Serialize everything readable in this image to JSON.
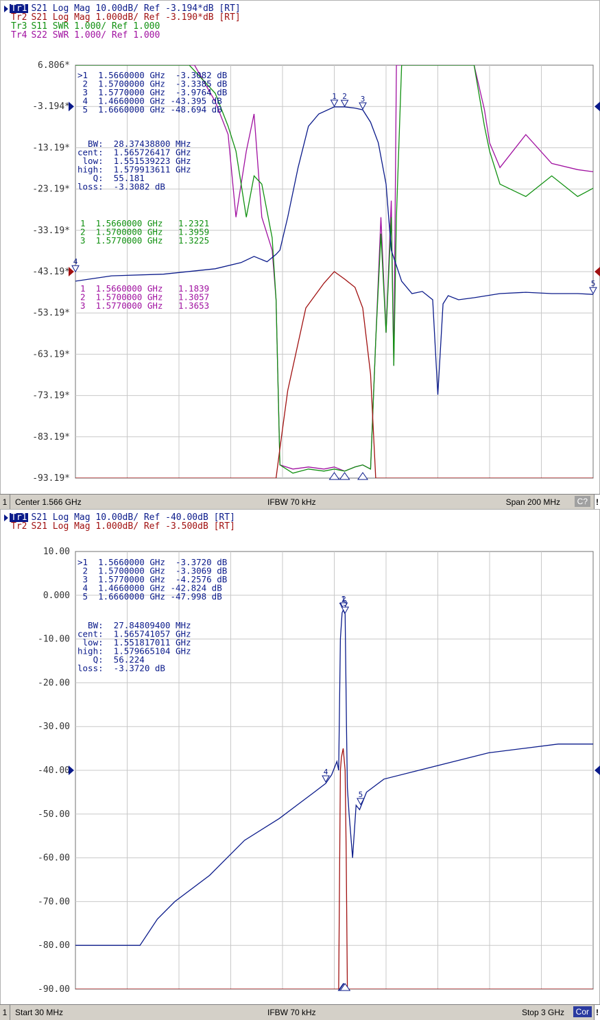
{
  "top": {
    "traces": [
      {
        "tag": "Tr1",
        "text": "S21 Log Mag 10.00dB/ Ref -3.194*dB [RT]",
        "color": "#0a1a8a",
        "active": true
      },
      {
        "tag": "Tr2",
        "text": "S21 Log Mag 1.000dB/ Ref -3.190*dB [RT]",
        "color": "#a01010",
        "active": false
      },
      {
        "tag": "Tr3",
        "text": "S11 SWR 1.000/ Ref 1.000",
        "color": "#109010",
        "active": false
      },
      {
        "tag": "Tr4",
        "text": "S22 SWR 1.000/ Ref 1.000",
        "color": "#a010a0",
        "active": false
      }
    ],
    "y_ticks": [
      "6.806*",
      "-3.194*",
      "-13.19*",
      "-23.19*",
      "-33.19*",
      "-43.19*",
      "-53.19*",
      "-63.19*",
      "-73.19*",
      "-83.19*",
      "-93.19*"
    ],
    "marker_table_tr1": [
      ">1  1.5660000 GHz  -3.3082 dB",
      " 2  1.5700000 GHz  -3.3385 dB",
      " 3  1.5770000 GHz  -3.9764 dB",
      " 4  1.4660000 GHz -43.395 dB",
      " 5  1.6660000 GHz -48.694 dB"
    ],
    "bw_stats": [
      "  BW:  28.37438800 MHz",
      "cent:  1.565726417 GHz",
      " low:  1.551539223 GHz",
      "high:  1.579913611 GHz",
      "   Q:  55.181",
      "loss:  -3.3082 dB"
    ],
    "marker_table_tr3": [
      "1  1.5660000 GHz   1.2321",
      "2  1.5700000 GHz   1.3959",
      "3  1.5770000 GHz   1.3225"
    ],
    "marker_table_tr4": [
      "1  1.5660000 GHz   1.1839",
      "2  1.5700000 GHz   1.3057",
      "3  1.5770000 GHz   1.3653"
    ],
    "status": {
      "index": "1",
      "left": "Center 1.566 GHz",
      "center": "IFBW 70 kHz",
      "right": "Span 200 MHz",
      "badge": "C?",
      "bang": "!"
    }
  },
  "bottom": {
    "traces": [
      {
        "tag": "Tr1",
        "text": "S21 Log Mag 10.00dB/ Ref -40.00dB [RT]",
        "color": "#0a1a8a",
        "active": true
      },
      {
        "tag": "Tr2",
        "text": "S21 Log Mag 1.000dB/ Ref -3.500dB [RT]",
        "color": "#a01010",
        "active": false
      }
    ],
    "y_ticks": [
      "10.00",
      "0.000",
      "-10.00",
      "-20.00",
      "-30.00",
      "-40.00",
      "-50.00",
      "-60.00",
      "-70.00",
      "-80.00",
      "-90.00"
    ],
    "marker_table_tr1": [
      ">1  1.5660000 GHz  -3.3720 dB",
      " 2  1.5700000 GHz  -3.3069 dB",
      " 3  1.5770000 GHz  -4.2576 dB",
      " 4  1.4660000 GHz -42.824 dB",
      " 5  1.6660000 GHz -47.998 dB"
    ],
    "bw_stats": [
      "  BW:  27.84809400 MHz",
      "cent:  1.565741057 GHz",
      " low:  1.551817011 GHz",
      "high:  1.579665104 GHz",
      "   Q:  56.224",
      "loss:  -3.3720 dB"
    ],
    "status": {
      "index": "1",
      "left": "Start 30 MHz",
      "center": "IFBW 70 kHz",
      "right": "Stop 3 GHz",
      "badge": "Cor",
      "bang": "!"
    }
  },
  "colors": {
    "tr1": "#0a1a8a",
    "tr2": "#a01010",
    "tr3": "#109010",
    "tr4": "#a010a0",
    "grid": "#c8c8c8",
    "badge_top": "#a0a0a0",
    "badge_bottom": "#2a3aa0"
  },
  "chart_data": [
    {
      "type": "line",
      "title": "",
      "xlabel": "",
      "ylabel": "",
      "x_unit": "GHz",
      "xlim": [
        1.466,
        1.666
      ],
      "ylim": [
        -93.19,
        6.806
      ],
      "grid": true,
      "series": [
        {
          "name": "Tr1 S21 Log Mag",
          "color": "#0a1a8a",
          "x": [
            1.466,
            1.48,
            1.5,
            1.52,
            1.53,
            1.535,
            1.54,
            1.5435,
            1.545,
            1.548,
            1.552,
            1.556,
            1.56,
            1.566,
            1.57,
            1.574,
            1.577,
            1.58,
            1.583,
            1.586,
            1.588,
            1.592,
            1.596,
            1.6,
            1.604,
            1.606,
            1.608,
            1.61,
            1.614,
            1.62,
            1.63,
            1.64,
            1.65,
            1.66,
            1.666
          ],
          "y": [
            -45.5,
            -44.2,
            -43.8,
            -42.5,
            -41.0,
            -39.5,
            -40.8,
            -39.0,
            -38.0,
            -30.0,
            -18.0,
            -8.0,
            -5.0,
            -3.3,
            -3.3,
            -3.6,
            -4.0,
            -7.0,
            -12.0,
            -22.0,
            -38.0,
            -45.5,
            -48.5,
            -48.0,
            -50.0,
            -73.0,
            -51.0,
            -49.0,
            -50.0,
            -49.5,
            -48.5,
            -48.2,
            -48.5,
            -48.5,
            -48.7
          ]
        },
        {
          "name": "Tr2 S21 Log Mag",
          "color": "#a01010",
          "x": [
            1.466,
            1.5435,
            1.545,
            1.548,
            1.555,
            1.562,
            1.566,
            1.57,
            1.574,
            1.577,
            1.58,
            1.582,
            1.585,
            1.588,
            1.59,
            1.592,
            1.666
          ],
          "y": [
            -93.19,
            -93.19,
            -86,
            -72,
            -52,
            -46,
            -43.2,
            -45,
            -47,
            -52,
            -68,
            -93.19,
            -93.19,
            -93.19,
            -93.19,
            -93.19,
            -93.19
          ]
        },
        {
          "name": "Tr3 S11 SWR",
          "color": "#109010",
          "x": [
            1.466,
            1.51,
            1.52,
            1.525,
            1.528,
            1.532,
            1.535,
            1.538,
            1.542,
            1.5435,
            1.545,
            1.55,
            1.556,
            1.562,
            1.566,
            1.57,
            1.574,
            1.577,
            1.58,
            1.582,
            1.584,
            1.586,
            1.588,
            1.589,
            1.59,
            1.592,
            1.594,
            1.598,
            1.6,
            1.62,
            1.624,
            1.626,
            1.63,
            1.64,
            1.65,
            1.66,
            1.666
          ],
          "y": [
            6.806,
            6.806,
            0,
            -8,
            -14,
            -30,
            -20,
            -22,
            -35,
            -50,
            -90,
            -92,
            -91,
            -91.5,
            -91,
            -91.5,
            -90.5,
            -90,
            -91,
            -60,
            -34,
            -58,
            -30,
            -66,
            -30,
            6.806,
            6.806,
            6.806,
            6.806,
            6.806,
            -8,
            -14,
            -22,
            -25,
            -20,
            -25,
            -23
          ]
        },
        {
          "name": "Tr4 S22 SWR",
          "color": "#a010a0",
          "x": [
            1.466,
            1.512,
            1.52,
            1.525,
            1.528,
            1.532,
            1.535,
            1.538,
            1.542,
            1.5435,
            1.545,
            1.55,
            1.556,
            1.562,
            1.566,
            1.57,
            1.574,
            1.577,
            1.58,
            1.582,
            1.584,
            1.586,
            1.588,
            1.589,
            1.59,
            1.594,
            1.6,
            1.62,
            1.624,
            1.626,
            1.63,
            1.64,
            1.65,
            1.66,
            1.666
          ],
          "y": [
            6.806,
            6.806,
            -2,
            -10,
            -30,
            -14,
            -5,
            -30,
            -38,
            -50,
            -90,
            -91,
            -90.5,
            -91,
            -90.5,
            -91.5,
            -90.5,
            -90,
            -91,
            -60,
            -30,
            -58,
            -26,
            -66,
            6.806,
            6.806,
            6.806,
            6.806,
            -4,
            -12,
            -18,
            -10,
            -17,
            -18.5,
            -19
          ]
        }
      ],
      "markers": [
        {
          "trace": "Tr1",
          "id": "1",
          "x": 1.566,
          "y": -3.3082
        },
        {
          "trace": "Tr1",
          "id": "2",
          "x": 1.57,
          "y": -3.3385
        },
        {
          "trace": "Tr1",
          "id": "3",
          "x": 1.577,
          "y": -3.9764
        },
        {
          "trace": "Tr1",
          "id": "4",
          "x": 1.466,
          "y": -43.395
        },
        {
          "trace": "Tr1",
          "id": "5",
          "x": 1.666,
          "y": -48.694
        }
      ]
    },
    {
      "type": "line",
      "title": "",
      "xlabel": "",
      "ylabel": "",
      "x_unit": "GHz",
      "xlim": [
        0.03,
        3.0
      ],
      "ylim": [
        -90,
        10
      ],
      "grid": true,
      "series": [
        {
          "name": "Tr1 S21 Log Mag",
          "color": "#0a1a8a",
          "x": [
            0.03,
            0.2,
            0.4,
            0.5,
            0.6,
            0.8,
            1.0,
            1.2,
            1.3,
            1.4,
            1.466,
            1.5,
            1.53,
            1.54,
            1.55,
            1.56,
            1.566,
            1.577,
            1.585,
            1.59,
            1.6,
            1.62,
            1.64,
            1.66,
            1.7,
            1.8,
            2.0,
            2.2,
            2.4,
            2.6,
            2.8,
            3.0
          ],
          "y": [
            -80,
            -80,
            -80,
            -74,
            -70,
            -64,
            -56,
            -51,
            -48,
            -45,
            -43,
            -41,
            -38,
            -40,
            -10,
            -4,
            -3.4,
            -4.3,
            -30,
            -44,
            -50,
            -60,
            -48,
            -49,
            -45,
            -42,
            -40,
            -38,
            -36,
            -35,
            -34,
            -34
          ]
        },
        {
          "name": "Tr2 S21 Log Mag",
          "color": "#a01010",
          "x": [
            0.03,
            1.54,
            1.55,
            1.556,
            1.566,
            1.577,
            1.583,
            1.59,
            3.0
          ],
          "y": [
            -90,
            -90,
            -40,
            -37,
            -35,
            -40,
            -58,
            -90,
            -90
          ]
        }
      ],
      "markers": [
        {
          "trace": "Tr1",
          "id": "1",
          "x": 1.566,
          "y": -3.372
        },
        {
          "trace": "Tr1",
          "id": "2",
          "x": 1.57,
          "y": -3.3069
        },
        {
          "trace": "Tr1",
          "id": "3",
          "x": 1.577,
          "y": -4.2576
        },
        {
          "trace": "Tr1",
          "id": "4",
          "x": 1.466,
          "y": -42.824
        },
        {
          "trace": "Tr1",
          "id": "5",
          "x": 1.666,
          "y": -47.998
        }
      ]
    }
  ]
}
